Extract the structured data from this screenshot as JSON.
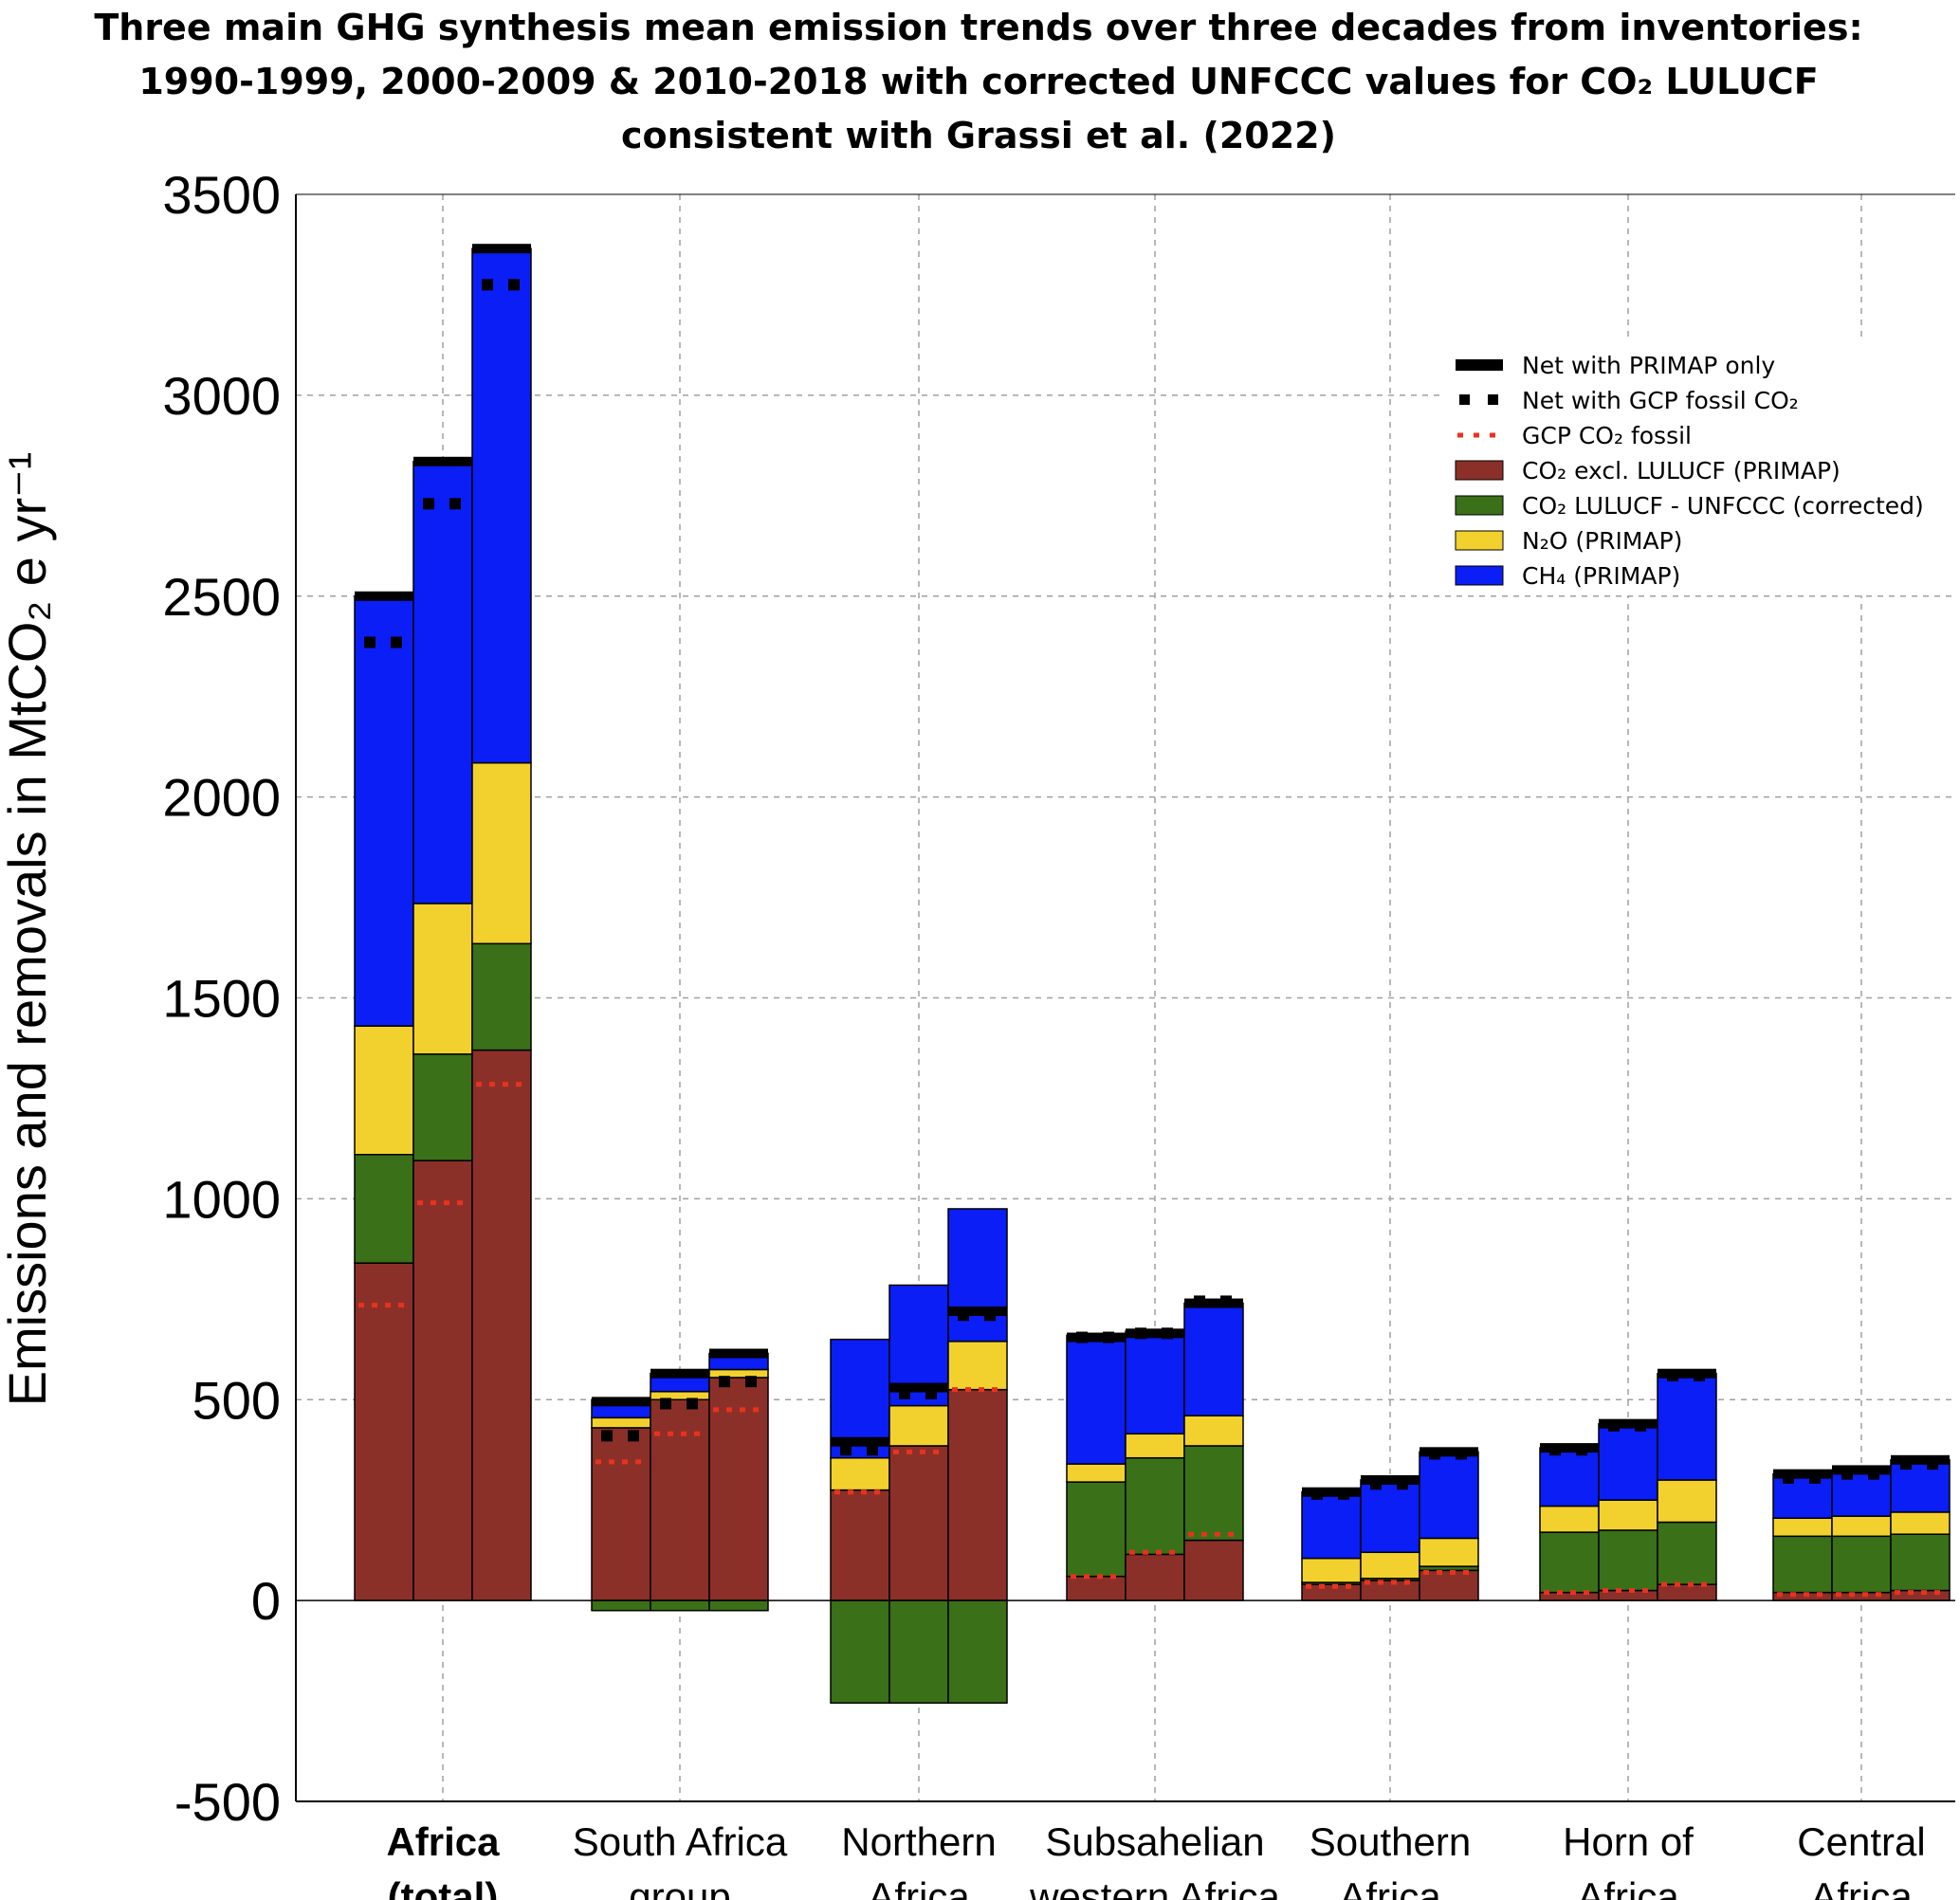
{
  "chart_data": {
    "type": "bar",
    "title": [
      "Three main GHG synthesis mean emission trends over three decades from inventories:",
      "1990-1999, 2000-2009 & 2010-2018 with corrected UNFCCC values for CO₂ LULUCF",
      "consistent with Grassi et al. (2022)"
    ],
    "ylabel": "Emissions and removals in MtCO₂ e yr⁻¹",
    "ylim": [
      -500,
      3500
    ],
    "yticks": [
      "3500",
      "3000",
      "2500",
      "2000",
      "1500",
      "1000",
      "500",
      "0",
      "-500"
    ],
    "ytick_values": [
      3500,
      3000,
      2500,
      2000,
      1500,
      1000,
      500,
      0,
      -500
    ],
    "grid": true,
    "legend_position": "top-right",
    "decades": [
      "1990-1999",
      "2000-2009",
      "2010-2018"
    ],
    "colors": {
      "co2": "#8b3028",
      "lulucf": "#3a7018",
      "n2o": "#f2d12e",
      "ch4": "#0a1ef5",
      "net": "#000000",
      "gcp_fossil": "#e8321e"
    },
    "legend": [
      {
        "key": "net_primap",
        "label": "Net with PRIMAP only",
        "style": "thick-line"
      },
      {
        "key": "net_gcp",
        "label": "Net with GCP fossil CO₂",
        "style": "black-dots"
      },
      {
        "key": "gcp_fossil",
        "label": "GCP CO₂ fossil",
        "style": "red-dots"
      },
      {
        "key": "co2",
        "label": "CO₂ excl. LULUCF (PRIMAP)",
        "style": "box"
      },
      {
        "key": "lulucf",
        "label": "CO₂  LULUCF - UNFCCC (corrected)",
        "style": "box"
      },
      {
        "key": "n2o",
        "label": "N₂O (PRIMAP)",
        "style": "box"
      },
      {
        "key": "ch4",
        "label": "CH₄ (PRIMAP)",
        "style": "box"
      }
    ],
    "categories": [
      {
        "label": [
          "Africa",
          "(total)"
        ],
        "bold": true,
        "bars": [
          {
            "co2": 840,
            "lulucf": 270,
            "n2o": 320,
            "ch4": 1070,
            "net": 2500,
            "net_gcp": 2385,
            "gcp_fossil": 735
          },
          {
            "co2": 1095,
            "lulucf": 265,
            "n2o": 375,
            "ch4": 1100,
            "net": 2835,
            "net_gcp": 2730,
            "gcp_fossil": 990
          },
          {
            "co2": 1370,
            "lulucf": 265,
            "n2o": 450,
            "ch4": 1280,
            "net": 3365,
            "net_gcp": 3275,
            "gcp_fossil": 1285
          }
        ]
      },
      {
        "label": [
          "South Africa",
          "group"
        ],
        "bold": false,
        "bars": [
          {
            "co2": 430,
            "lulucf": -25,
            "n2o": 25,
            "ch4": 45,
            "net": 495,
            "net_gcp": 410,
            "gcp_fossil": 345
          },
          {
            "co2": 500,
            "lulucf": -25,
            "n2o": 20,
            "ch4": 45,
            "net": 565,
            "net_gcp": 490,
            "gcp_fossil": 415
          },
          {
            "co2": 555,
            "lulucf": -25,
            "n2o": 20,
            "ch4": 40,
            "net": 615,
            "net_gcp": 545,
            "gcp_fossil": 475
          }
        ]
      },
      {
        "label": [
          "Northern",
          "Africa"
        ],
        "bold": false,
        "bars": [
          {
            "co2": 275,
            "lulucf": -255,
            "n2o": 80,
            "ch4": 295,
            "net": 395,
            "net_gcp": 375,
            "gcp_fossil": 270
          },
          {
            "co2": 385,
            "lulucf": -255,
            "n2o": 100,
            "ch4": 300,
            "net": 530,
            "net_gcp": 515,
            "gcp_fossil": 370
          },
          {
            "co2": 525,
            "lulucf": -255,
            "n2o": 120,
            "ch4": 330,
            "net": 720,
            "net_gcp": 710,
            "gcp_fossil": 525
          }
        ]
      },
      {
        "label": [
          "Subsahelian",
          "western Africa"
        ],
        "bold": false,
        "bars": [
          {
            "co2": 60,
            "lulucf": 235,
            "n2o": 45,
            "ch4": 320,
            "net": 655,
            "net_gcp": 655,
            "gcp_fossil": 60
          },
          {
            "co2": 115,
            "lulucf": 240,
            "n2o": 60,
            "ch4": 255,
            "net": 665,
            "net_gcp": 665,
            "gcp_fossil": 120
          },
          {
            "co2": 150,
            "lulucf": 235,
            "n2o": 75,
            "ch4": 280,
            "net": 740,
            "net_gcp": 745,
            "gcp_fossil": 165
          }
        ]
      },
      {
        "label": [
          "Southern",
          "Africa"
        ],
        "bold": false,
        "bars": [
          {
            "co2": 40,
            "lulucf": 5,
            "n2o": 60,
            "ch4": 165,
            "net": 270,
            "net_gcp": 265,
            "gcp_fossil": 35
          },
          {
            "co2": 50,
            "lulucf": 5,
            "n2o": 65,
            "ch4": 180,
            "net": 300,
            "net_gcp": 290,
            "gcp_fossil": 45
          },
          {
            "co2": 75,
            "lulucf": 10,
            "n2o": 70,
            "ch4": 215,
            "net": 370,
            "net_gcp": 365,
            "gcp_fossil": 70
          }
        ]
      },
      {
        "label": [
          "Horn of",
          "Africa"
        ],
        "bold": false,
        "bars": [
          {
            "co2": 20,
            "lulucf": 150,
            "n2o": 65,
            "ch4": 145,
            "net": 380,
            "net_gcp": 375,
            "gcp_fossil": 20
          },
          {
            "co2": 25,
            "lulucf": 150,
            "n2o": 75,
            "ch4": 190,
            "net": 440,
            "net_gcp": 435,
            "gcp_fossil": 25
          },
          {
            "co2": 40,
            "lulucf": 155,
            "n2o": 105,
            "ch4": 265,
            "net": 565,
            "net_gcp": 560,
            "gcp_fossil": 40
          }
        ]
      },
      {
        "label": [
          "Central",
          "Africa"
        ],
        "bold": false,
        "bars": [
          {
            "co2": 20,
            "lulucf": 140,
            "n2o": 45,
            "ch4": 110,
            "net": 315,
            "net_gcp": 305,
            "gcp_fossil": 15
          },
          {
            "co2": 20,
            "lulucf": 140,
            "n2o": 50,
            "ch4": 115,
            "net": 325,
            "net_gcp": 315,
            "gcp_fossil": 15
          },
          {
            "co2": 25,
            "lulucf": 140,
            "n2o": 55,
            "ch4": 130,
            "net": 350,
            "net_gcp": 340,
            "gcp_fossil": 20
          }
        ]
      }
    ]
  }
}
